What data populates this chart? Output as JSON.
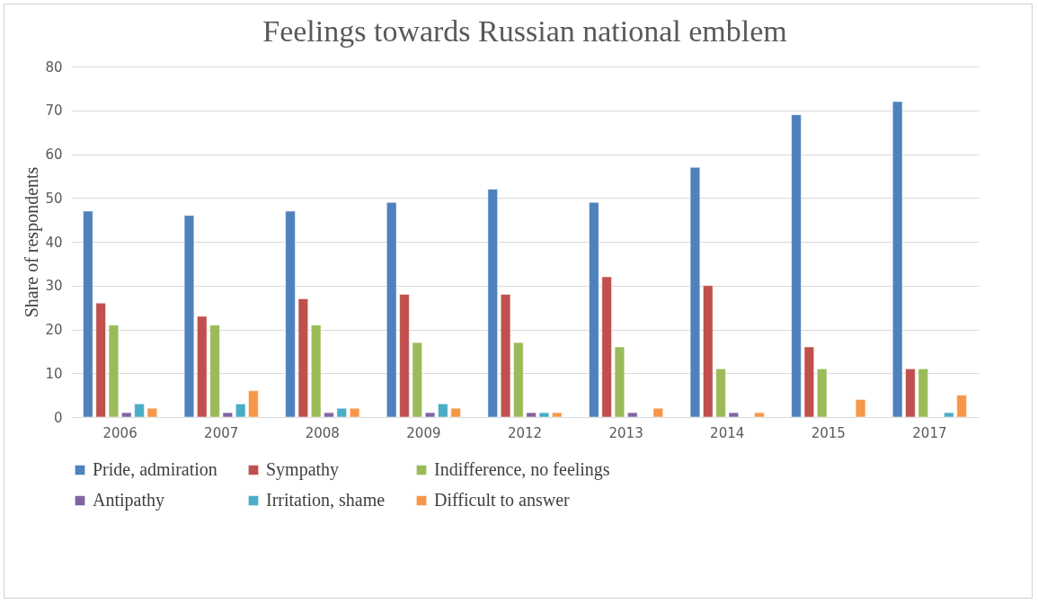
{
  "chart_data": {
    "type": "bar",
    "title": "Feelings towards Russian national emblem",
    "ylabel": "Share of respondents",
    "categories": [
      "2006",
      "2007",
      "2008",
      "2009",
      "2012",
      "2013",
      "2014",
      "2015",
      "2017"
    ],
    "series": [
      {
        "name": "Pride, admiration",
        "color": "#4f81bd",
        "values": [
          47,
          46,
          47,
          49,
          52,
          49,
          57,
          69,
          72
        ]
      },
      {
        "name": "Sympathy",
        "color": "#c0504d",
        "values": [
          26,
          23,
          27,
          28,
          28,
          32,
          30,
          16,
          11
        ]
      },
      {
        "name": "Indifference, no feelings",
        "color": "#9bbb59",
        "values": [
          21,
          21,
          21,
          17,
          17,
          16,
          11,
          11,
          11
        ]
      },
      {
        "name": "Antipathy",
        "color": "#8064a2",
        "values": [
          1,
          1,
          1,
          1,
          1,
          1,
          1,
          null,
          null
        ]
      },
      {
        "name": "Irritation, shame",
        "color": "#4bacc6",
        "values": [
          3,
          3,
          2,
          3,
          1,
          null,
          null,
          null,
          1
        ]
      },
      {
        "name": "Difficult to answer",
        "color": "#f79646",
        "values": [
          2,
          6,
          2,
          2,
          1,
          2,
          1,
          4,
          5
        ]
      }
    ],
    "ylim": [
      0,
      80
    ],
    "yticks": [
      0,
      10,
      20,
      30,
      40,
      50,
      60,
      70,
      80
    ],
    "grid": "y",
    "legend": "bottom"
  }
}
